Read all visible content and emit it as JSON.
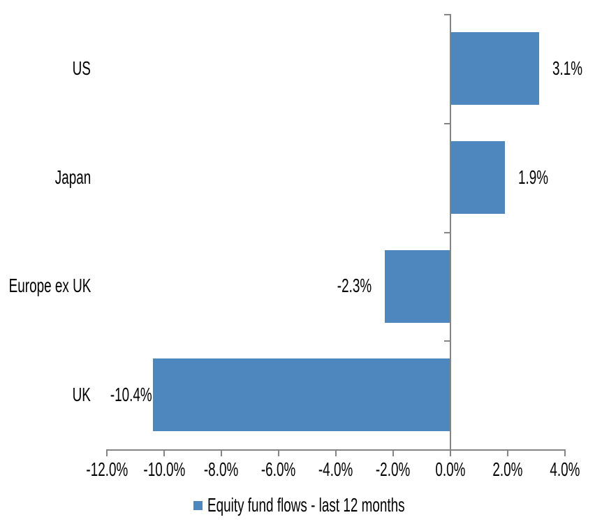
{
  "chart_data": {
    "type": "bar",
    "orientation": "horizontal",
    "title": "",
    "categories": [
      "US",
      "Japan",
      "Europe ex UK",
      "UK"
    ],
    "series": [
      {
        "name": "Equity fund flows - last 12 months",
        "values": [
          3.1,
          1.9,
          -2.3,
          -10.4
        ],
        "data_labels": [
          "3.1%",
          "1.9%",
          "-2.3%",
          "-10.4%"
        ],
        "color": "#4E86BE"
      }
    ],
    "xlim": [
      -12,
      4
    ],
    "x_tick_step": 2,
    "x_tick_labels": [
      "-12.0%",
      "-10.0%",
      "-8.0%",
      "-6.0%",
      "-4.0%",
      "-2.0%",
      "0.0%",
      "2.0%",
      "4.0%"
    ],
    "grid": false,
    "legend_position": "bottom",
    "axis_color": "#848484",
    "text_color": "#000000",
    "background": "#FFFFFF"
  },
  "legend": {
    "label": "Equity fund flows - last 12 months",
    "swatch_color": "#4E86BE"
  }
}
